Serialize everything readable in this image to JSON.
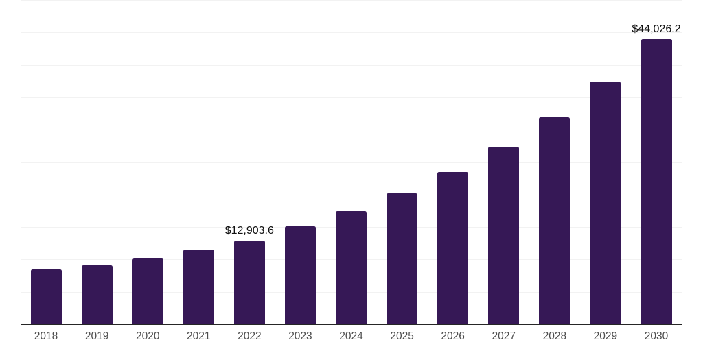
{
  "chart_data": {
    "type": "bar",
    "title": "",
    "xlabel": "",
    "ylabel": "",
    "categories": [
      "2018",
      "2019",
      "2020",
      "2021",
      "2022",
      "2023",
      "2024",
      "2025",
      "2026",
      "2027",
      "2028",
      "2029",
      "2030"
    ],
    "values": [
      8450,
      9090,
      10150,
      11520,
      12903.6,
      15100,
      17440,
      20190,
      23470,
      27380,
      31920,
      37420,
      44026.2
    ],
    "data_labels": [
      {
        "category": "2022",
        "text": "$12,903.6"
      },
      {
        "category": "2030",
        "text": "$44,026.2"
      }
    ],
    "ylim": [
      0,
      50000
    ],
    "grid_step": 5000,
    "grid": true,
    "legend": false,
    "y_axis_tick_labels_visible": false,
    "bar_color": "#361856",
    "gridline_color": "#F2F2F2",
    "axis_line_color": "#262626",
    "tick_label_color": "#4D4D4D",
    "data_label_color": "#111111"
  }
}
